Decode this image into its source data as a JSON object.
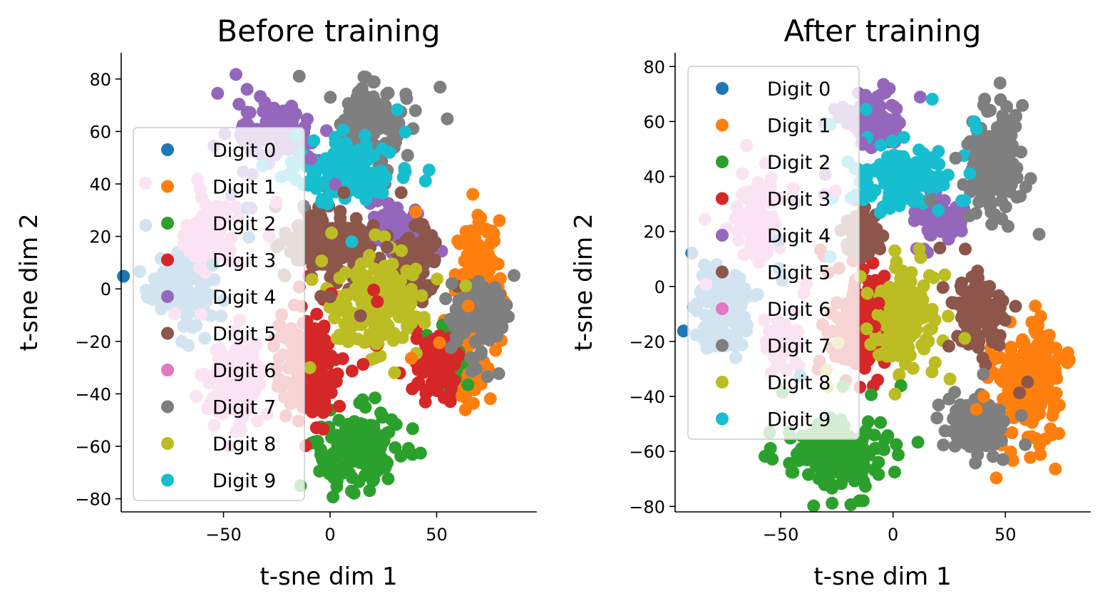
{
  "chart_data": [
    {
      "type": "scatter",
      "title": "Before training",
      "xlabel": "t-sne dim 1",
      "ylabel": "t-sne dim 2",
      "xlim": [
        -98,
        97
      ],
      "ylim": [
        -85,
        90
      ],
      "xticks": [
        -50,
        0,
        50
      ],
      "xtick_labels": [
        "−50",
        "0",
        "50"
      ],
      "yticks": [
        -80,
        -60,
        -40,
        -20,
        0,
        20,
        40,
        60,
        80
      ],
      "ytick_labels": [
        "−80",
        "−60",
        "−40",
        "−20",
        "0",
        "20",
        "40",
        "60",
        "80"
      ],
      "legend_position": "center-left",
      "series": [
        {
          "name": "Digit 0",
          "color": "#1f77b4",
          "clusters": [
            [
              -70,
              2,
              14,
              14
            ]
          ]
        },
        {
          "name": "Digit 1",
          "color": "#ff7f0e",
          "clusters": [
            [
              70,
              0,
              10,
              22
            ],
            [
              62,
              -30,
              8,
              12
            ]
          ]
        },
        {
          "name": "Digit 2",
          "color": "#2ca02c",
          "clusters": [
            [
              12,
              -62,
              18,
              14
            ],
            [
              55,
              -25,
              6,
              10
            ]
          ]
        },
        {
          "name": "Digit 3",
          "color": "#d62728",
          "clusters": [
            [
              -10,
              -30,
              14,
              20
            ],
            [
              50,
              -30,
              10,
              12
            ]
          ]
        },
        {
          "name": "Digit 4",
          "color": "#9467bd",
          "clusters": [
            [
              -25,
              60,
              16,
              10
            ],
            [
              30,
              22,
              12,
              8
            ]
          ]
        },
        {
          "name": "Digit 5",
          "color": "#8c564b",
          "clusters": [
            [
              0,
              18,
              20,
              12
            ],
            [
              40,
              10,
              10,
              12
            ]
          ]
        },
        {
          "name": "Digit 6",
          "color": "#e377c2",
          "clusters": [
            [
              -55,
              20,
              10,
              10
            ],
            [
              -45,
              -35,
              12,
              14
            ]
          ]
        },
        {
          "name": "Digit 7",
          "color": "#7f7f7f",
          "clusters": [
            [
              20,
              60,
              14,
              16
            ],
            [
              70,
              -10,
              12,
              14
            ]
          ]
        },
        {
          "name": "Digit 8",
          "color": "#bcbd22",
          "clusters": [
            [
              22,
              -5,
              20,
              16
            ]
          ]
        },
        {
          "name": "Digit 9",
          "color": "#17becf",
          "clusters": [
            [
              5,
              45,
              22,
              10
            ]
          ]
        }
      ]
    },
    {
      "type": "scatter",
      "title": "After training",
      "xlabel": "t-sne dim 1",
      "ylabel": "t-sne dim 2",
      "xlim": [
        -97,
        88
      ],
      "ylim": [
        -82,
        85
      ],
      "xticks": [
        -50,
        0,
        50
      ],
      "xtick_labels": [
        "−50",
        "0",
        "50"
      ],
      "yticks": [
        -80,
        -60,
        -40,
        -20,
        0,
        20,
        40,
        60,
        80
      ],
      "ytick_labels": [
        "−80",
        "−60",
        "−40",
        "−20",
        "0",
        "20",
        "40",
        "60",
        "80"
      ],
      "legend_position": "upper-left",
      "series": [
        {
          "name": "Digit 0",
          "color": "#1f77b4",
          "clusters": [
            [
              -75,
              -10,
              12,
              14
            ]
          ]
        },
        {
          "name": "Digit 1",
          "color": "#ff7f0e",
          "clusters": [
            [
              60,
              -35,
              14,
              22
            ]
          ]
        },
        {
          "name": "Digit 2",
          "color": "#2ca02c",
          "clusters": [
            [
              -25,
              -62,
              20,
              12
            ]
          ]
        },
        {
          "name": "Digit 3",
          "color": "#d62728",
          "clusters": [
            [
              -15,
              -15,
              12,
              18
            ]
          ]
        },
        {
          "name": "Digit 4",
          "color": "#9467bd",
          "clusters": [
            [
              -10,
              60,
              12,
              10
            ],
            [
              20,
              25,
              10,
              8
            ]
          ]
        },
        {
          "name": "Digit 5",
          "color": "#8c564b",
          "clusters": [
            [
              38,
              -10,
              12,
              12
            ],
            [
              -15,
              20,
              8,
              8
            ]
          ]
        },
        {
          "name": "Digit 6",
          "color": "#e377c2",
          "clusters": [
            [
              -60,
              25,
              10,
              14
            ],
            [
              -50,
              -20,
              8,
              8
            ]
          ]
        },
        {
          "name": "Digit 7",
          "color": "#7f7f7f",
          "clusters": [
            [
              45,
              45,
              12,
              20
            ],
            [
              35,
              -50,
              12,
              10
            ]
          ]
        },
        {
          "name": "Digit 8",
          "color": "#bcbd22",
          "clusters": [
            [
              5,
              -10,
              14,
              16
            ]
          ]
        },
        {
          "name": "Digit 9",
          "color": "#17becf",
          "clusters": [
            [
              5,
              40,
              18,
              12
            ]
          ]
        }
      ]
    }
  ]
}
